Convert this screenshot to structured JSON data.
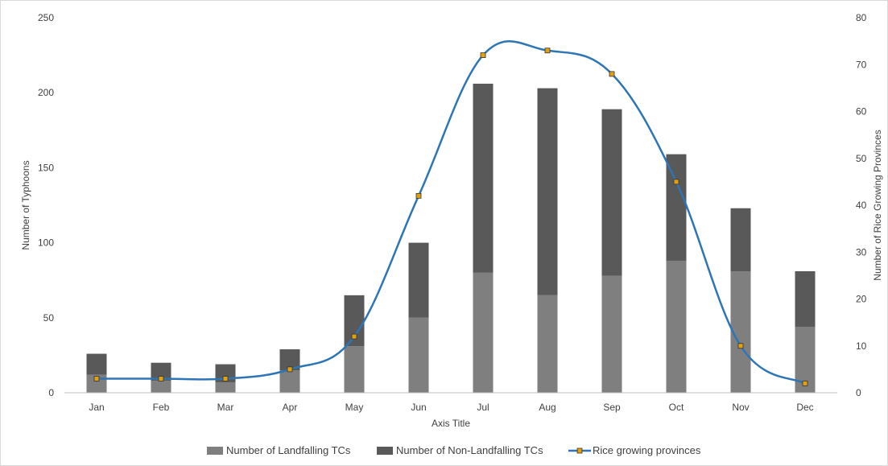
{
  "chart_data": {
    "type": "bar",
    "categories": [
      "Jan",
      "Feb",
      "Mar",
      "Apr",
      "May",
      "Jun",
      "Jul",
      "Aug",
      "Sep",
      "Oct",
      "Nov",
      "Dec"
    ],
    "series": [
      {
        "name": "Number of Landfalling TCs",
        "type": "stacked-bar",
        "axis": "left",
        "color": "#7f7f7f",
        "values": [
          12,
          8,
          7,
          15,
          31,
          50,
          80,
          65,
          78,
          88,
          81,
          44
        ]
      },
      {
        "name": "Number of Non-Landfalling TCs",
        "type": "stacked-bar",
        "axis": "left",
        "color": "#595959",
        "values": [
          14,
          12,
          12,
          14,
          34,
          50,
          126,
          138,
          111,
          71,
          42,
          37
        ]
      },
      {
        "name": "Rice growing provinces",
        "type": "line",
        "axis": "right",
        "color": "#2e75b6",
        "marker_color": "#e0a010",
        "values": [
          3,
          3,
          3,
          5,
          12,
          42,
          72,
          73,
          68,
          45,
          10,
          2
        ]
      }
    ],
    "xlabel": "Axis Title",
    "ylabel": "Number of Typhoons",
    "y2label": "Number of Rice Growing Provinces",
    "ylim": [
      0,
      250
    ],
    "yticks": [
      0,
      50,
      100,
      150,
      200,
      250
    ],
    "y2lim": [
      0,
      80
    ],
    "y2ticks": [
      0,
      10,
      20,
      30,
      40,
      50,
      60,
      70,
      80
    ],
    "grid": false,
    "legend": "bottom"
  }
}
